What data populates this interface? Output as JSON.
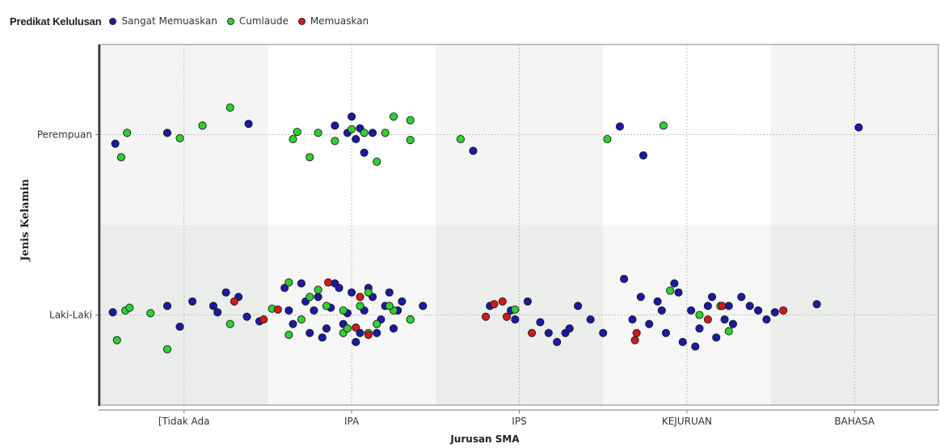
{
  "chart_data": {
    "type": "scatter",
    "legend_title": "Predikat Kelulusan",
    "legend_position": "top-left",
    "xlabel": "Jurusan SMA",
    "ylabel": "Jenis Kelamin",
    "x_categories": [
      "[Tidak Ada",
      "IPA",
      "IPS",
      "KEJURUAN",
      "BAHASA"
    ],
    "y_categories": [
      "Laki-Laki",
      "Perempuan"
    ],
    "grid": true,
    "jitter": true,
    "series": [
      {
        "name": "Sangat Memuaskan",
        "color": "#1a1aa6",
        "points": [
          [
            "Perempuan",
            "[Tidak Ada",
            -0.82,
            -0.1
          ],
          [
            "Perempuan",
            "[Tidak Ada",
            -0.2,
            0.02
          ],
          [
            "Perempuan",
            "[Tidak Ada",
            0.77,
            0.12
          ],
          [
            "Perempuan",
            "IPA",
            -0.2,
            0.1
          ],
          [
            "Perempuan",
            "IPA",
            0,
            0.2
          ],
          [
            "Perempuan",
            "IPA",
            0.1,
            0.07
          ],
          [
            "Perempuan",
            "IPA",
            0.25,
            0.02
          ],
          [
            "Perempuan",
            "IPA",
            0.05,
            -0.05
          ],
          [
            "Perempuan",
            "IPA",
            -0.05,
            0.02
          ],
          [
            "Perempuan",
            "IPA",
            0.15,
            -0.2
          ],
          [
            "Perempuan",
            "IPS",
            -0.55,
            -0.18
          ],
          [
            "Perempuan",
            "KEJURUAN",
            -0.8,
            0.09
          ],
          [
            "Perempuan",
            "KEJURUAN",
            -0.52,
            -0.23
          ],
          [
            "Perempuan",
            "BAHASA",
            0.05,
            0.08
          ],
          [
            "Laki-Laki",
            "[Tidak Ada",
            -0.85,
            0.03
          ],
          [
            "Laki-Laki",
            "[Tidak Ada",
            -0.2,
            0.1
          ],
          [
            "Laki-Laki",
            "[Tidak Ada",
            0.1,
            0.15
          ],
          [
            "Laki-Laki",
            "[Tidak Ada",
            0.35,
            0.1
          ],
          [
            "Laki-Laki",
            "[Tidak Ada",
            0.5,
            0.25
          ],
          [
            "Laki-Laki",
            "[Tidak Ada",
            0.65,
            0.2
          ],
          [
            "Laki-Laki",
            "[Tidak Ada",
            -0.05,
            -0.13
          ],
          [
            "Laki-Laki",
            "[Tidak Ada",
            0.4,
            0.03
          ],
          [
            "Laki-Laki",
            "[Tidak Ada",
            0.9,
            -0.07
          ],
          [
            "Laki-Laki",
            "[Tidak Ada",
            0.75,
            -0.02
          ],
          [
            "Laki-Laki",
            "IPA",
            -0.8,
            0.3
          ],
          [
            "Laki-Laki",
            "IPA",
            -0.6,
            0.35
          ],
          [
            "Laki-Laki",
            "IPA",
            -0.4,
            0.2
          ],
          [
            "Laki-Laki",
            "IPA",
            -0.2,
            0.35
          ],
          [
            "Laki-Laki",
            "IPA",
            0,
            0.25
          ],
          [
            "Laki-Laki",
            "IPA",
            0.2,
            0.3
          ],
          [
            "Laki-Laki",
            "IPA",
            0.4,
            0.1
          ],
          [
            "Laki-Laki",
            "IPA",
            0.6,
            0.15
          ],
          [
            "Laki-Laki",
            "IPA",
            -0.7,
            -0.1
          ],
          [
            "Laki-Laki",
            "IPA",
            -0.5,
            -0.2
          ],
          [
            "Laki-Laki",
            "IPA",
            -0.3,
            -0.15
          ],
          [
            "Laki-Laki",
            "IPA",
            -0.1,
            -0.1
          ],
          [
            "Laki-Laki",
            "IPA",
            0.1,
            -0.2
          ],
          [
            "Laki-Laki",
            "IPA",
            0.3,
            -0.2
          ],
          [
            "Laki-Laki",
            "IPA",
            0.5,
            -0.15
          ],
          [
            "Laki-Laki",
            "IPA",
            0.7,
            -0.05
          ],
          [
            "Laki-Laki",
            "IPA",
            -0.75,
            0.05
          ],
          [
            "Laki-Laki",
            "IPA",
            -0.45,
            0.05
          ],
          [
            "Laki-Laki",
            "IPA",
            -0.25,
            0.08
          ],
          [
            "Laki-Laki",
            "IPA",
            -0.05,
            0.02
          ],
          [
            "Laki-Laki",
            "IPA",
            0.15,
            0.05
          ],
          [
            "Laki-Laki",
            "IPA",
            0.35,
            -0.05
          ],
          [
            "Laki-Laki",
            "IPA",
            0.55,
            0.05
          ],
          [
            "Laki-Laki",
            "IPA",
            -0.35,
            -0.25
          ],
          [
            "Laki-Laki",
            "IPA",
            0.05,
            -0.3
          ],
          [
            "Laki-Laki",
            "IPA",
            0.25,
            0.2
          ],
          [
            "Laki-Laki",
            "IPA",
            -0.15,
            0.3
          ],
          [
            "Laki-Laki",
            "IPA",
            0.45,
            0.25
          ],
          [
            "Laki-Laki",
            "IPA",
            0.85,
            0.1
          ],
          [
            "Laki-Laki",
            "IPA",
            -0.55,
            0.15
          ],
          [
            "Laki-Laki",
            "IPS",
            -0.35,
            0.1
          ],
          [
            "Laki-Laki",
            "IPS",
            -0.1,
            0.05
          ],
          [
            "Laki-Laki",
            "IPS",
            0.1,
            0.15
          ],
          [
            "Laki-Laki",
            "IPS",
            -0.05,
            -0.05
          ],
          [
            "Laki-Laki",
            "IPS",
            0.25,
            -0.08
          ],
          [
            "Laki-Laki",
            "IPS",
            0.35,
            -0.2
          ],
          [
            "Laki-Laki",
            "IPS",
            0.55,
            -0.2
          ],
          [
            "Laki-Laki",
            "IPS",
            0.7,
            0.1
          ],
          [
            "Laki-Laki",
            "IPS",
            0.85,
            -0.05
          ],
          [
            "Laki-Laki",
            "IPS",
            1,
            -0.2
          ],
          [
            "Laki-Laki",
            "IPS",
            0.45,
            -0.3
          ],
          [
            "Laki-Laki",
            "IPS",
            0.6,
            -0.15
          ],
          [
            "Laki-Laki",
            "KEJURUAN",
            -0.75,
            0.4
          ],
          [
            "Laki-Laki",
            "KEJURUAN",
            -0.55,
            0.2
          ],
          [
            "Laki-Laki",
            "KEJURUAN",
            -0.35,
            0.15
          ],
          [
            "Laki-Laki",
            "KEJURUAN",
            -0.15,
            0.35
          ],
          [
            "Laki-Laki",
            "KEJURUAN",
            0.05,
            0.05
          ],
          [
            "Laki-Laki",
            "KEJURUAN",
            0.25,
            0.1
          ],
          [
            "Laki-Laki",
            "KEJURUAN",
            0.45,
            -0.05
          ],
          [
            "Laki-Laki",
            "KEJURUAN",
            0.65,
            0.2
          ],
          [
            "Laki-Laki",
            "KEJURUAN",
            0.85,
            0.05
          ],
          [
            "Laki-Laki",
            "KEJURUAN",
            1.05,
            0.03
          ],
          [
            "Laki-Laki",
            "KEJURUAN",
            -0.65,
            -0.05
          ],
          [
            "Laki-Laki",
            "KEJURUAN",
            -0.45,
            -0.1
          ],
          [
            "Laki-Laki",
            "KEJURUAN",
            -0.25,
            -0.2
          ],
          [
            "Laki-Laki",
            "KEJURUAN",
            -0.05,
            -0.3
          ],
          [
            "Laki-Laki",
            "KEJURUAN",
            0.15,
            -0.15
          ],
          [
            "Laki-Laki",
            "KEJURUAN",
            0.35,
            -0.25
          ],
          [
            "Laki-Laki",
            "KEJURUAN",
            0.55,
            -0.1
          ],
          [
            "Laki-Laki",
            "KEJURUAN",
            0.75,
            0.1
          ],
          [
            "Laki-Laki",
            "KEJURUAN",
            0.95,
            -0.05
          ],
          [
            "Laki-Laki",
            "KEJURUAN",
            -0.1,
            0.25
          ],
          [
            "Laki-Laki",
            "KEJURUAN",
            0.1,
            -0.35
          ],
          [
            "Laki-Laki",
            "KEJURUAN",
            0.3,
            0.2
          ],
          [
            "Laki-Laki",
            "KEJURUAN",
            -0.3,
            0.05
          ],
          [
            "Laki-Laki",
            "KEJURUAN",
            0.5,
            0.1
          ],
          [
            "Laki-Laki",
            "BAHASA",
            -0.45,
            0.12
          ]
        ]
      },
      {
        "name": "Cumlaude",
        "color": "#2fd12f",
        "points": [
          [
            "Perempuan",
            "[Tidak Ada",
            -0.68,
            0.02
          ],
          [
            "Perempuan",
            "[Tidak Ada",
            -0.05,
            -0.04
          ],
          [
            "Perempuan",
            "[Tidak Ada",
            0.22,
            0.1
          ],
          [
            "Perempuan",
            "[Tidak Ada",
            0.55,
            0.3
          ],
          [
            "Perempuan",
            "[Tidak Ada",
            -0.75,
            -0.25
          ],
          [
            "Perempuan",
            "IPA",
            -0.7,
            -0.05
          ],
          [
            "Perempuan",
            "IPA",
            -0.4,
            0.02
          ],
          [
            "Perempuan",
            "IPA",
            -0.2,
            -0.07
          ],
          [
            "Perempuan",
            "IPA",
            0,
            0.06
          ],
          [
            "Perempuan",
            "IPA",
            0.15,
            0.02
          ],
          [
            "Perempuan",
            "IPA",
            0.4,
            0.02
          ],
          [
            "Perempuan",
            "IPA",
            -0.5,
            -0.25
          ],
          [
            "Perempuan",
            "IPA",
            0.3,
            -0.3
          ],
          [
            "Perempuan",
            "IPA",
            0.5,
            0.2
          ],
          [
            "Perempuan",
            "IPA",
            0.7,
            0.16
          ],
          [
            "Perempuan",
            "IPA",
            -0.65,
            0.03
          ],
          [
            "Perempuan",
            "IPA",
            0.7,
            -0.06
          ],
          [
            "Perempuan",
            "IPS",
            -0.7,
            -0.05
          ],
          [
            "Perempuan",
            "KEJURUAN",
            -0.95,
            -0.05
          ],
          [
            "Perempuan",
            "KEJURUAN",
            -0.28,
            0.1
          ],
          [
            "Laki-Laki",
            "[Tidak Ada",
            -0.7,
            0.05
          ],
          [
            "Laki-Laki",
            "[Tidak Ada",
            -0.8,
            -0.28
          ],
          [
            "Laki-Laki",
            "[Tidak Ada",
            -0.4,
            0.02
          ],
          [
            "Laki-Laki",
            "[Tidak Ada",
            -0.2,
            -0.38
          ],
          [
            "Laki-Laki",
            "[Tidak Ada",
            0.55,
            -0.1
          ],
          [
            "Laki-Laki",
            "[Tidak Ada",
            -0.65,
            0.08
          ],
          [
            "Laki-Laki",
            "IPA",
            -0.95,
            0.07
          ],
          [
            "Laki-Laki",
            "IPA",
            -0.75,
            0.36
          ],
          [
            "Laki-Laki",
            "IPA",
            -0.5,
            0.2
          ],
          [
            "Laki-Laki",
            "IPA",
            -0.3,
            0.1
          ],
          [
            "Laki-Laki",
            "IPA",
            -0.1,
            -0.2
          ],
          [
            "Laki-Laki",
            "IPA",
            0.1,
            0.1
          ],
          [
            "Laki-Laki",
            "IPA",
            0.3,
            -0.1
          ],
          [
            "Laki-Laki",
            "IPA",
            0.5,
            0.05
          ],
          [
            "Laki-Laki",
            "IPA",
            -0.6,
            -0.05
          ],
          [
            "Laki-Laki",
            "IPA",
            0.2,
            0.25
          ],
          [
            "Laki-Laki",
            "IPA",
            0.7,
            -0.05
          ],
          [
            "Laki-Laki",
            "IPA",
            -0.4,
            0.28
          ],
          [
            "Laki-Laki",
            "IPA",
            -0.1,
            0.05
          ],
          [
            "Laki-Laki",
            "IPA",
            0.45,
            0.1
          ],
          [
            "Laki-Laki",
            "IPA",
            -0.75,
            -0.22
          ],
          [
            "Laki-Laki",
            "IPA",
            -0.05,
            -0.15
          ],
          [
            "Laki-Laki",
            "IPA",
            0.2,
            -0.2
          ],
          [
            "Laki-Laki",
            "IPS",
            -0.05,
            0.06
          ],
          [
            "Laki-Laki",
            "KEJURUAN",
            -0.2,
            0.27
          ],
          [
            "Laki-Laki",
            "KEJURUAN",
            0.15,
            0
          ],
          [
            "Laki-Laki",
            "KEJURUAN",
            0.4,
            0.1
          ],
          [
            "Laki-Laki",
            "KEJURUAN",
            0.5,
            -0.18
          ]
        ]
      },
      {
        "name": "Memuaskan",
        "color": "#d11a1a",
        "points": [
          [
            "Laki-Laki",
            "[Tidak Ada",
            0.6,
            0.15
          ],
          [
            "Laki-Laki",
            "[Tidak Ada",
            0.95,
            -0.05
          ],
          [
            "Laki-Laki",
            "IPA",
            -0.88,
            0.06
          ],
          [
            "Laki-Laki",
            "IPA",
            -0.28,
            0.36
          ],
          [
            "Laki-Laki",
            "IPA",
            0.1,
            0.2
          ],
          [
            "Laki-Laki",
            "IPA",
            0.2,
            -0.22
          ],
          [
            "Laki-Laki",
            "IPA",
            0.05,
            -0.14
          ],
          [
            "Laki-Laki",
            "IPS",
            -0.4,
            -0.02
          ],
          [
            "Laki-Laki",
            "IPS",
            -0.3,
            0.12
          ],
          [
            "Laki-Laki",
            "IPS",
            -0.2,
            0.15
          ],
          [
            "Laki-Laki",
            "IPS",
            -0.15,
            -0.02
          ],
          [
            "Laki-Laki",
            "IPS",
            0.15,
            -0.2
          ],
          [
            "Laki-Laki",
            "KEJURUAN",
            -0.6,
            -0.2
          ],
          [
            "Laki-Laki",
            "KEJURUAN",
            -0.62,
            -0.28
          ],
          [
            "Laki-Laki",
            "KEJURUAN",
            0.25,
            -0.05
          ],
          [
            "Laki-Laki",
            "KEJURUAN",
            0.42,
            0.1
          ],
          [
            "Laki-Laki",
            "KEJURUAN",
            1.15,
            0.05
          ]
        ]
      }
    ]
  }
}
